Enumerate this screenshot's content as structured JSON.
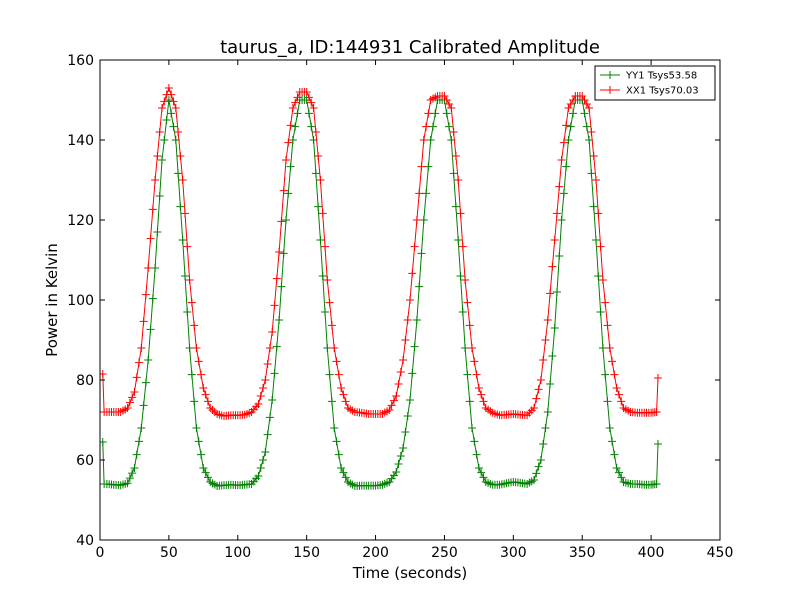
{
  "chart_data": {
    "type": "line",
    "title": "taurus_a, ID:144931 Calibrated Amplitude",
    "xlabel": "Time (seconds)",
    "ylabel": "Power in Kelvin",
    "xlim": [
      0,
      450
    ],
    "ylim": [
      40,
      160
    ],
    "xticks": [
      0,
      50,
      100,
      150,
      200,
      250,
      300,
      350,
      400,
      450
    ],
    "yticks": [
      40,
      60,
      80,
      100,
      120,
      140,
      160
    ],
    "grid": false,
    "legend_position": "top-right",
    "marker": "+",
    "series": [
      {
        "name": "YY1 Tsys53.58",
        "color": "#008000",
        "x": [
          2,
          3,
          5,
          10,
          15,
          20,
          25,
          30,
          35,
          40,
          45,
          50,
          55,
          60,
          65,
          70,
          75,
          80,
          85,
          90,
          95,
          100,
          105,
          110,
          115,
          120,
          125,
          130,
          135,
          140,
          145,
          150,
          155,
          160,
          165,
          170,
          175,
          180,
          185,
          190,
          195,
          200,
          205,
          210,
          215,
          220,
          225,
          230,
          235,
          240,
          245,
          250,
          255,
          260,
          265,
          270,
          275,
          280,
          285,
          290,
          295,
          300,
          305,
          310,
          315,
          320,
          325,
          330,
          335,
          340,
          345,
          350,
          355,
          360,
          365,
          370,
          375,
          380,
          385,
          390,
          395,
          400,
          404,
          405
        ],
        "y": [
          64.5,
          54,
          54,
          53.8,
          53.7,
          54.2,
          58,
          68,
          85,
          108,
          135,
          150,
          140,
          115,
          88,
          68,
          58,
          54.5,
          53.5,
          53.7,
          53.8,
          53.7,
          53.8,
          54,
          56,
          62,
          75,
          95,
          120,
          140,
          150,
          150,
          140,
          115,
          88,
          68,
          58,
          54.5,
          53.5,
          53.6,
          53.6,
          53.6,
          53.8,
          54.5,
          57,
          63,
          75,
          95,
          120,
          140,
          150,
          150,
          140,
          115,
          88,
          68,
          58,
          54.5,
          53.8,
          53.8,
          54.2,
          54.5,
          54.3,
          54,
          55,
          60,
          72,
          93,
          120,
          140,
          150,
          150,
          140,
          115,
          88,
          68,
          58,
          54.5,
          54,
          54,
          53.8,
          53.8,
          54,
          64
        ]
      },
      {
        "name": "XX1 Tsys70.03",
        "color": "#ff0000",
        "x": [
          2,
          3,
          5,
          10,
          15,
          20,
          25,
          30,
          35,
          40,
          45,
          50,
          55,
          60,
          65,
          70,
          75,
          80,
          85,
          90,
          95,
          100,
          105,
          110,
          115,
          120,
          125,
          130,
          135,
          140,
          145,
          150,
          155,
          160,
          165,
          170,
          175,
          180,
          185,
          190,
          195,
          200,
          205,
          210,
          215,
          220,
          225,
          230,
          235,
          240,
          245,
          250,
          255,
          260,
          265,
          270,
          275,
          280,
          285,
          290,
          295,
          300,
          305,
          310,
          315,
          320,
          325,
          330,
          335,
          340,
          345,
          350,
          355,
          360,
          365,
          370,
          375,
          380,
          385,
          390,
          395,
          400,
          404,
          405
        ],
        "y": [
          81.5,
          72,
          72,
          72,
          72,
          73,
          77,
          88,
          108,
          130,
          148,
          153,
          148,
          130,
          105,
          88,
          78,
          73,
          71.5,
          71,
          71.2,
          71.2,
          71.3,
          72,
          74,
          80,
          92,
          112,
          135,
          148,
          152,
          152,
          148,
          130,
          105,
          88,
          78,
          73,
          72,
          71.8,
          71.5,
          71.5,
          71.5,
          72.5,
          76,
          85,
          100,
          120,
          140,
          150,
          151,
          151,
          148,
          130,
          105,
          88,
          78,
          73,
          71.8,
          71.2,
          71.3,
          71.5,
          71.3,
          71.2,
          73,
          80,
          95,
          115,
          135,
          148,
          151,
          151,
          148,
          130,
          105,
          88,
          78,
          73,
          72,
          71.8,
          71.8,
          71.8,
          72,
          80.5
        ]
      }
    ]
  }
}
